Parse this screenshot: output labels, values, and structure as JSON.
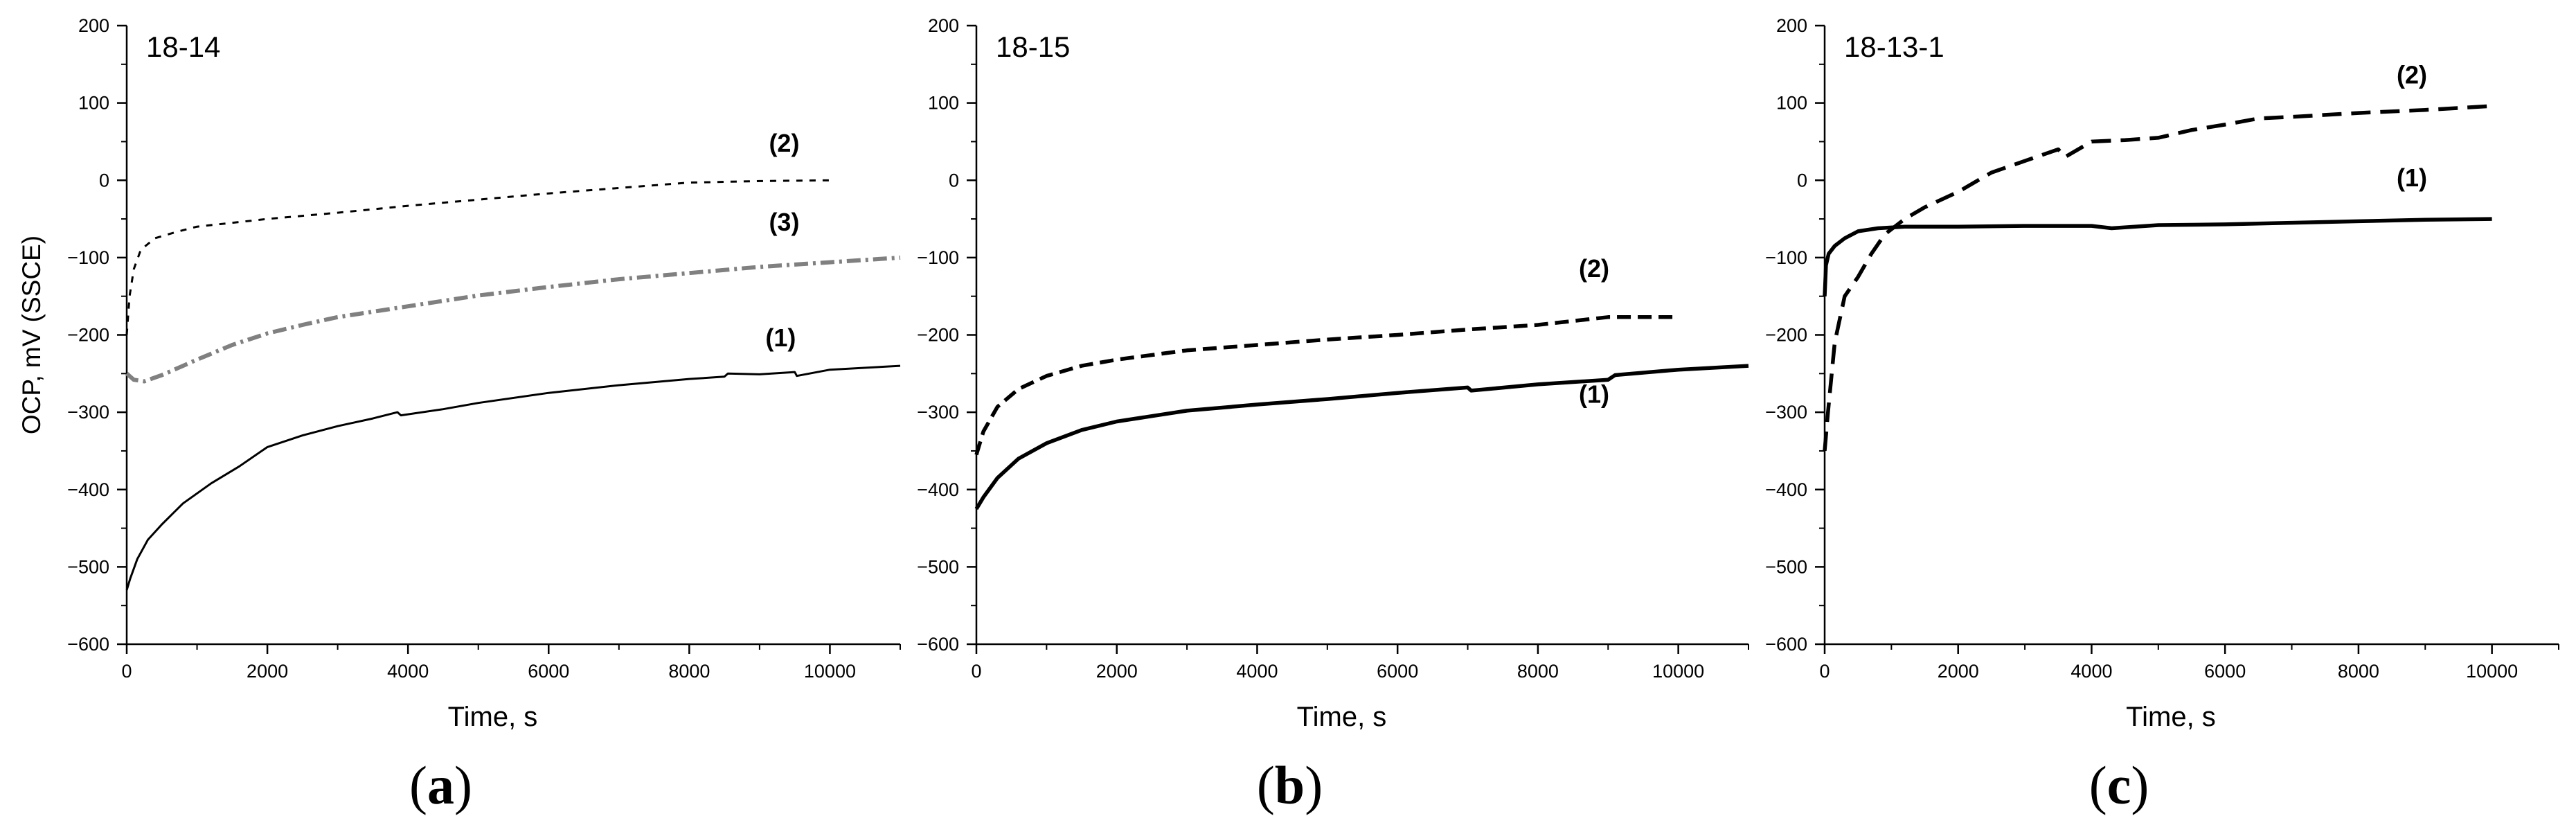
{
  "figure": {
    "panels_count": 3
  },
  "chart_data": [
    {
      "type": "line",
      "panel_label": "(a)",
      "panel_label_parts": {
        "open": "(",
        "letter": "a",
        "close": ")"
      },
      "title": "18-14",
      "xlabel": "Time, s",
      "ylabel": "OCP, mV (SSCE)",
      "xlim": [
        0,
        11000
      ],
      "ylim": [
        -600,
        200
      ],
      "xticks": [
        0,
        2000,
        4000,
        6000,
        8000,
        10000
      ],
      "xtick_labels": [
        "0",
        "2000",
        "4000",
        "6000",
        "8000",
        "10000"
      ],
      "yticks": [
        -600,
        -500,
        -400,
        -300,
        -200,
        -100,
        0,
        100,
        200
      ],
      "ytick_labels": [
        "−600",
        "−500",
        "−400",
        "−300",
        "−200",
        "−100",
        "0",
        "100",
        "200"
      ],
      "grid": false,
      "series": [
        {
          "name": "(1)",
          "label": "(1)",
          "style": "solid",
          "color": "#000000",
          "label_at": [
            9300,
            -215
          ],
          "x": [
            0,
            50,
            150,
            300,
            500,
            800,
            1200,
            1600,
            2000,
            2500,
            3000,
            3500,
            3850,
            3900,
            4500,
            5000,
            6000,
            7000,
            8000,
            8500,
            8550,
            9000,
            9500,
            9530,
            10000,
            11000
          ],
          "y": [
            -530,
            -515,
            -490,
            -465,
            -445,
            -418,
            -392,
            -370,
            -345,
            -330,
            -318,
            -308,
            -300,
            -304,
            -296,
            -288,
            -275,
            -265,
            -257,
            -254,
            -250,
            -251,
            -248,
            -253,
            -245,
            -240
          ]
        },
        {
          "name": "(2)",
          "label": "(2)",
          "style": "dashed-fine",
          "color": "#000000",
          "label_at": [
            9350,
            37
          ],
          "x": [
            0,
            40,
            100,
            200,
            400,
            700,
            1000,
            2000,
            3000,
            4000,
            5000,
            6000,
            7000,
            8000,
            9000,
            10000
          ],
          "y": [
            -200,
            -150,
            -115,
            -90,
            -75,
            -67,
            -60,
            -50,
            -42,
            -33,
            -25,
            -17,
            -10,
            -3,
            -1,
            0
          ]
        },
        {
          "name": "(3)",
          "label": "(3)",
          "style": "dash-dot",
          "color": "#808080",
          "label_at": [
            9350,
            -65
          ],
          "x": [
            0,
            100,
            250,
            500,
            1000,
            1500,
            2000,
            2500,
            3000,
            4000,
            5000,
            6000,
            7000,
            8000,
            9000,
            10000,
            11000
          ],
          "y": [
            -250,
            -258,
            -260,
            -252,
            -232,
            -213,
            -198,
            -187,
            -177,
            -163,
            -149,
            -138,
            -128,
            -120,
            -112,
            -106,
            -100
          ]
        }
      ]
    },
    {
      "type": "line",
      "panel_label": "(b)",
      "panel_label_parts": {
        "open": "(",
        "letter": "b",
        "close": ")"
      },
      "title": "18-15",
      "xlabel": "Time, s",
      "ylabel": "",
      "xlim": [
        0,
        11000
      ],
      "ylim": [
        -600,
        200
      ],
      "xticks": [
        0,
        2000,
        4000,
        6000,
        8000,
        10000
      ],
      "xtick_labels": [
        "0",
        "2000",
        "4000",
        "6000",
        "8000",
        "10000"
      ],
      "yticks": [
        -600,
        -500,
        -400,
        -300,
        -200,
        -100,
        0,
        100,
        200
      ],
      "ytick_labels": [
        "−600",
        "−500",
        "−400",
        "−300",
        "−200",
        "−100",
        "0",
        "100",
        "200"
      ],
      "grid": false,
      "series": [
        {
          "name": "(1)",
          "label": "(1)",
          "style": "solid-bold",
          "color": "#000000",
          "label_at": [
            8800,
            -288
          ],
          "x": [
            0,
            100,
            300,
            600,
            1000,
            1500,
            2000,
            2500,
            3000,
            4000,
            5000,
            6000,
            7000,
            7050,
            8000,
            9000,
            9100,
            10000,
            11000
          ],
          "y": [
            -425,
            -410,
            -385,
            -360,
            -340,
            -323,
            -312,
            -305,
            -298,
            -290,
            -283,
            -275,
            -268,
            -272,
            -264,
            -258,
            -252,
            -245,
            -240
          ]
        },
        {
          "name": "(2)",
          "label": "(2)",
          "style": "dashed",
          "color": "#000000",
          "label_at": [
            8800,
            -125
          ],
          "x": [
            0,
            100,
            300,
            600,
            1000,
            1500,
            2000,
            3000,
            4000,
            5000,
            6000,
            7000,
            8000,
            9000,
            10000
          ],
          "y": [
            -355,
            -325,
            -293,
            -270,
            -253,
            -240,
            -232,
            -220,
            -213,
            -206,
            -200,
            -193,
            -187,
            -177,
            -177
          ]
        }
      ]
    },
    {
      "type": "line",
      "panel_label": "(c)",
      "panel_label_parts": {
        "open": "(",
        "letter": "c",
        "close": ")"
      },
      "title": "18-13-1",
      "xlabel": "Time, s",
      "ylabel": "",
      "xlim": [
        0,
        11000
      ],
      "ylim": [
        -600,
        200
      ],
      "xticks": [
        0,
        2000,
        4000,
        6000,
        8000,
        10000
      ],
      "xtick_labels": [
        "0",
        "2000",
        "4000",
        "6000",
        "8000",
        "10000"
      ],
      "yticks": [
        -600,
        -500,
        -400,
        -300,
        -200,
        -100,
        0,
        100,
        200
      ],
      "ytick_labels": [
        "−600",
        "−500",
        "−400",
        "−300",
        "−200",
        "−100",
        "0",
        "100",
        "200"
      ],
      "grid": false,
      "series": [
        {
          "name": "(1)",
          "label": "(1)",
          "style": "solid-bold",
          "color": "#000000",
          "label_at": [
            8800,
            -8
          ],
          "x": [
            0,
            20,
            60,
            150,
            300,
            500,
            800,
            1200,
            2000,
            3000,
            4000,
            4300,
            5000,
            6000,
            7000,
            8000,
            9000,
            10000
          ],
          "y": [
            -150,
            -110,
            -95,
            -85,
            -75,
            -66,
            -62,
            -60,
            -60,
            -59,
            -59,
            -62,
            -58,
            -57,
            -55,
            -53,
            -51,
            -50
          ]
        },
        {
          "name": "(2)",
          "label": "(2)",
          "style": "dashed-bold",
          "color": "#000000",
          "label_at": [
            8800,
            125
          ],
          "x": [
            0,
            50,
            150,
            300,
            500,
            700,
            900,
            1200,
            1500,
            2000,
            2500,
            3000,
            3500,
            3600,
            4000,
            4500,
            5000,
            5500,
            6000,
            6500,
            7000,
            8000,
            9000,
            10000
          ],
          "y": [
            -350,
            -300,
            -210,
            -150,
            -125,
            -95,
            -70,
            -50,
            -35,
            -15,
            10,
            25,
            40,
            30,
            50,
            52,
            55,
            65,
            72,
            80,
            82,
            87,
            91,
            96
          ]
        }
      ]
    }
  ]
}
